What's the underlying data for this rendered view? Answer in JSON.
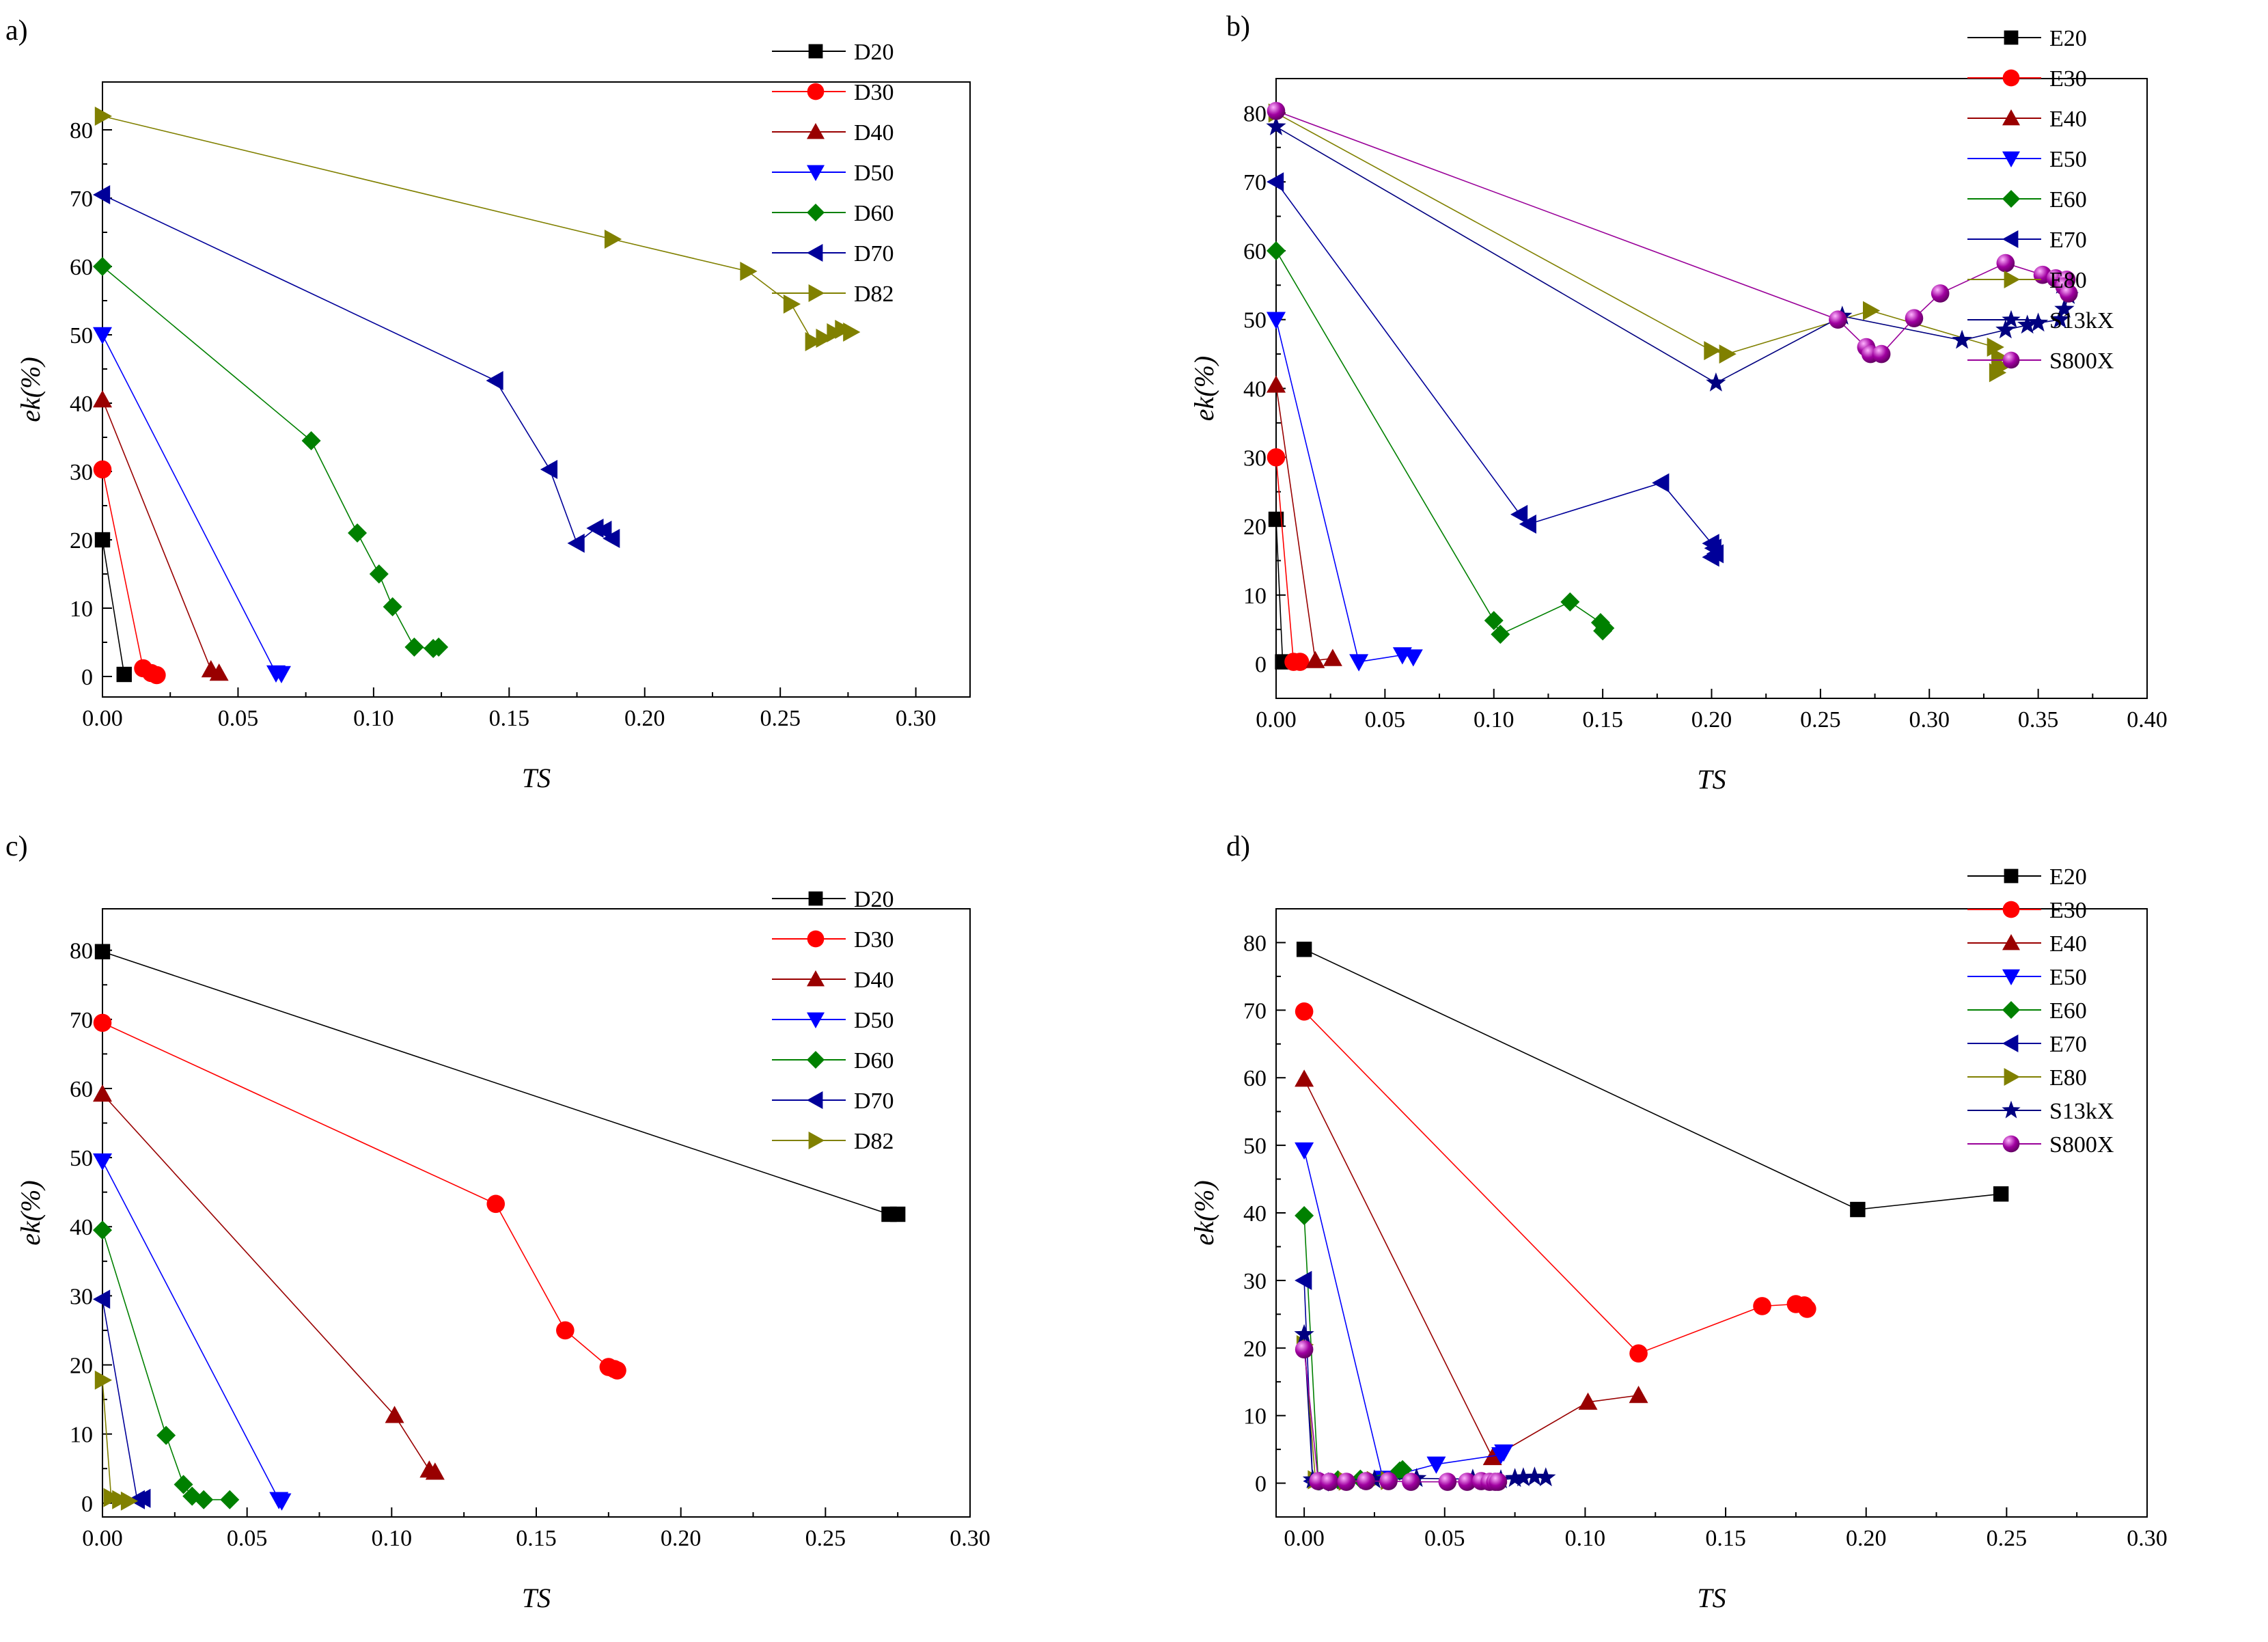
{
  "figure": "Four-panel chart of ek(%) versus TS",
  "chart_data": [
    {
      "type": "line",
      "panel_label": "a)",
      "xlabel": "TS",
      "ylabel": "ek(%)",
      "xlim": [
        0,
        0.32
      ],
      "ylim": [
        -3,
        87
      ],
      "xticks": [
        0.0,
        0.05,
        0.1,
        0.15,
        0.2,
        0.25,
        0.3
      ],
      "xtick_labels": [
        "0.00",
        "0.05",
        "0.10",
        "0.15",
        "0.20",
        "0.25",
        "0.30"
      ],
      "yticks": [
        0,
        10,
        20,
        30,
        40,
        50,
        60,
        70,
        80
      ],
      "ytick_labels": [
        "0",
        "10",
        "20",
        "30",
        "40",
        "50",
        "60",
        "70",
        "80"
      ],
      "legend_position": "top-right",
      "series": [
        {
          "name": "D20",
          "marker": "square",
          "color": "#000000",
          "x": [
            0,
            0.008
          ],
          "y": [
            20,
            0.3
          ]
        },
        {
          "name": "D30",
          "marker": "circle",
          "color": "#ff0000",
          "x": [
            0,
            0.015,
            0.018,
            0.02
          ],
          "y": [
            30.3,
            1.2,
            0.5,
            0.2
          ]
        },
        {
          "name": "D40",
          "marker": "triangle-up",
          "color": "#990000",
          "x": [
            0,
            0.04,
            0.043
          ],
          "y": [
            40.5,
            1,
            0.5
          ]
        },
        {
          "name": "D50",
          "marker": "triangle-down",
          "color": "#0000ff",
          "x": [
            0,
            0.064,
            0.066
          ],
          "y": [
            50,
            0.5,
            0.4
          ]
        },
        {
          "name": "D60",
          "marker": "diamond",
          "color": "#008000",
          "x": [
            0,
            0.077,
            0.094,
            0.102,
            0.107,
            0.115,
            0.122,
            0.124
          ],
          "y": [
            60,
            34.5,
            21,
            15,
            10.2,
            4.3,
            4.1,
            4.3
          ]
        },
        {
          "name": "D70",
          "marker": "triangle-left",
          "color": "#000099",
          "x": [
            0,
            0.145,
            0.165,
            0.175,
            0.182,
            0.185,
            0.188
          ],
          "y": [
            70.5,
            43.3,
            30.3,
            19.5,
            21.7,
            21.4,
            20.2
          ]
        },
        {
          "name": "D82",
          "marker": "triangle-right",
          "color": "#808000",
          "x": [
            0,
            0.188,
            0.238,
            0.254,
            0.262,
            0.266,
            0.27,
            0.273,
            0.276
          ],
          "y": [
            82,
            64,
            59.3,
            54.5,
            49,
            49.5,
            50.3,
            50.8,
            50.4
          ]
        }
      ]
    },
    {
      "type": "line",
      "panel_label": "b)",
      "xlabel": "TS",
      "ylabel": "ek(%)",
      "xlim": [
        0,
        0.4
      ],
      "ylim": [
        -5,
        85
      ],
      "xticks": [
        0.0,
        0.05,
        0.1,
        0.15,
        0.2,
        0.25,
        0.3,
        0.35,
        0.4
      ],
      "xtick_labels": [
        "0.00",
        "0.05",
        "0.10",
        "0.15",
        "0.20",
        "0.25",
        "0.30",
        "0.35",
        "0.40"
      ],
      "yticks": [
        0,
        10,
        20,
        30,
        40,
        50,
        60,
        70,
        80
      ],
      "ytick_labels": [
        "0",
        "10",
        "20",
        "30",
        "40",
        "50",
        "60",
        "70",
        "80"
      ],
      "legend_position": "top-right",
      "series": [
        {
          "name": "E20",
          "marker": "square",
          "color": "#000000",
          "x": [
            0,
            0.003
          ],
          "y": [
            21,
            0.3
          ]
        },
        {
          "name": "E30",
          "marker": "circle",
          "color": "#ff0000",
          "x": [
            0,
            0.008,
            0.011
          ],
          "y": [
            30,
            0.3,
            0.3
          ]
        },
        {
          "name": "E40",
          "marker": "triangle-up",
          "color": "#990000",
          "x": [
            0,
            0.018,
            0.026
          ],
          "y": [
            40.5,
            0.5,
            0.8
          ]
        },
        {
          "name": "E50",
          "marker": "triangle-down",
          "color": "#0000ff",
          "x": [
            0,
            0.038,
            0.058,
            0.063
          ],
          "y": [
            50,
            0.3,
            1.3,
            1
          ]
        },
        {
          "name": "E60",
          "marker": "diamond",
          "color": "#008000",
          "x": [
            0,
            0.1,
            0.103,
            0.135,
            0.149,
            0.151,
            0.15
          ],
          "y": [
            60,
            6.3,
            4.3,
            9,
            6,
            5.2,
            4.8
          ]
        },
        {
          "name": "E70",
          "marker": "triangle-left",
          "color": "#000099",
          "x": [
            0,
            0.112,
            0.116,
            0.177,
            0.2,
            0.201,
            0.202,
            0.2
          ],
          "y": [
            70,
            21.7,
            20.3,
            26.3,
            17.5,
            16.8,
            16,
            15.5
          ]
        },
        {
          "name": "E80",
          "marker": "triangle-right",
          "color": "#808000",
          "x": [
            0,
            0.2,
            0.207,
            0.273,
            0.33,
            0.332,
            0.333,
            0.331
          ],
          "y": [
            80,
            45.5,
            45,
            51.3,
            46,
            44.5,
            43.2,
            42.3
          ]
        },
        {
          "name": "S13kX",
          "marker": "star",
          "color": "#000080",
          "x": [
            0,
            0.202,
            0.26,
            0.315,
            0.335,
            0.345,
            0.35,
            0.36,
            0.362,
            0.364,
            0.361
          ],
          "y": [
            78,
            40.8,
            50.5,
            47,
            48.5,
            49.2,
            49.5,
            50,
            51.5,
            53.5,
            55
          ]
        },
        {
          "name": "S800X",
          "marker": "sphere",
          "color": "#990099",
          "x": [
            0,
            0.258,
            0.271,
            0.273,
            0.278,
            0.293,
            0.305,
            0.335,
            0.352,
            0.358,
            0.363,
            0.362,
            0.364
          ],
          "y": [
            80.3,
            50,
            46,
            45,
            45,
            50.2,
            53.8,
            58.2,
            56.5,
            56,
            55.8,
            54.8,
            53.8
          ]
        }
      ]
    },
    {
      "type": "line",
      "panel_label": "c)",
      "xlabel": "TS",
      "ylabel": "ek(%)",
      "xlim": [
        0,
        0.3
      ],
      "ylim": [
        -2,
        86
      ],
      "xticks": [
        0.0,
        0.05,
        0.1,
        0.15,
        0.2,
        0.25,
        0.3
      ],
      "xtick_labels": [
        "0.00",
        "0.05",
        "0.10",
        "0.15",
        "0.20",
        "0.25",
        "0.30"
      ],
      "yticks": [
        0,
        10,
        20,
        30,
        40,
        50,
        60,
        70,
        80
      ],
      "ytick_labels": [
        "0",
        "10",
        "20",
        "30",
        "40",
        "50",
        "60",
        "70",
        "80"
      ],
      "legend_position": "top-right",
      "series": [
        {
          "name": "D20",
          "marker": "square",
          "color": "#000000",
          "x": [
            0,
            0.272,
            0.275
          ],
          "y": [
            79.8,
            41.8,
            41.8
          ]
        },
        {
          "name": "D30",
          "marker": "circle",
          "color": "#ff0000",
          "x": [
            0,
            0.136,
            0.16,
            0.175,
            0.177,
            0.178
          ],
          "y": [
            69.5,
            43.3,
            25,
            19.7,
            19.4,
            19.2
          ]
        },
        {
          "name": "D40",
          "marker": "triangle-up",
          "color": "#990000",
          "x": [
            0,
            0.101,
            0.113,
            0.115
          ],
          "y": [
            59.2,
            12.7,
            4.8,
            4.5
          ]
        },
        {
          "name": "D50",
          "marker": "triangle-down",
          "color": "#0000ff",
          "x": [
            0,
            0.061,
            0.062
          ],
          "y": [
            49.5,
            0.5,
            0.3
          ]
        },
        {
          "name": "D60",
          "marker": "diamond",
          "color": "#008000",
          "x": [
            0,
            0.022,
            0.028,
            0.031,
            0.035,
            0.044
          ],
          "y": [
            39.5,
            9.8,
            2.7,
            1,
            0.5,
            0.5
          ]
        },
        {
          "name": "D70",
          "marker": "triangle-left",
          "color": "#000099",
          "x": [
            0,
            0.012,
            0.014
          ],
          "y": [
            29.5,
            0.5,
            0.7
          ]
        },
        {
          "name": "D82",
          "marker": "triangle-right",
          "color": "#808000",
          "x": [
            0,
            0.003,
            0.006,
            0.009
          ],
          "y": [
            17.8,
            0.8,
            0.5,
            0.3
          ]
        }
      ]
    },
    {
      "type": "line",
      "panel_label": "d)",
      "xlabel": "TS",
      "ylabel": "ek(%)",
      "xlim": [
        -0.01,
        0.3
      ],
      "ylim": [
        -5,
        85
      ],
      "xticks": [
        0.0,
        0.05,
        0.1,
        0.15,
        0.2,
        0.25,
        0.3
      ],
      "xtick_labels": [
        "0.00",
        "0.05",
        "0.10",
        "0.15",
        "0.20",
        "0.25",
        "0.30"
      ],
      "yticks": [
        0,
        10,
        20,
        30,
        40,
        50,
        60,
        70,
        80
      ],
      "ytick_labels": [
        "0",
        "10",
        "20",
        "30",
        "40",
        "50",
        "60",
        "70",
        "80"
      ],
      "legend_position": "top-right",
      "series": [
        {
          "name": "E20",
          "marker": "square",
          "color": "#000000",
          "x": [
            0,
            0.197,
            0.248
          ],
          "y": [
            79,
            40.5,
            42.8
          ]
        },
        {
          "name": "E30",
          "marker": "circle",
          "color": "#ff0000",
          "x": [
            0,
            0.119,
            0.163,
            0.175,
            0.178,
            0.179
          ],
          "y": [
            69.8,
            19.2,
            26.2,
            26.5,
            26.3,
            25.8
          ]
        },
        {
          "name": "E40",
          "marker": "triangle-up",
          "color": "#990000",
          "x": [
            0,
            0.067,
            0.101,
            0.119
          ],
          "y": [
            59.8,
            3.8,
            12,
            13
          ]
        },
        {
          "name": "E50",
          "marker": "triangle-down",
          "color": "#0000ff",
          "x": [
            0,
            0.028,
            0.047,
            0.07,
            0.071
          ],
          "y": [
            49.3,
            0.7,
            2.8,
            4.2,
            4.6
          ]
        },
        {
          "name": "E60",
          "marker": "diamond",
          "color": "#008000",
          "x": [
            0,
            0.005,
            0.012,
            0.02,
            0.034,
            0.035
          ],
          "y": [
            39.6,
            0.3,
            0.5,
            0.6,
            1.8,
            2
          ]
        },
        {
          "name": "E70",
          "marker": "triangle-left",
          "color": "#000099",
          "x": [
            0,
            0.003,
            0.006
          ],
          "y": [
            30,
            0.3,
            0.2
          ]
        },
        {
          "name": "E80",
          "marker": "triangle-right",
          "color": "#808000",
          "x": [
            0,
            0.004,
            0.015,
            0.025,
            0.03
          ],
          "y": [
            20.5,
            0.5,
            0.3,
            0.4,
            0.4
          ]
        },
        {
          "name": "S13kX",
          "marker": "star",
          "color": "#000080",
          "x": [
            0,
            0.003,
            0.025,
            0.04,
            0.06,
            0.07,
            0.075,
            0.078,
            0.082,
            0.086
          ],
          "y": [
            22,
            0.5,
            0.5,
            0.7,
            0.6,
            0.5,
            0.7,
            0.8,
            0.9,
            0.8
          ]
        },
        {
          "name": "S800X",
          "marker": "sphere",
          "color": "#990099",
          "x": [
            0,
            0.005,
            0.009,
            0.015,
            0.022,
            0.03,
            0.038,
            0.051,
            0.058,
            0.063,
            0.066,
            0.068,
            0.069
          ],
          "y": [
            19.8,
            0.3,
            0.2,
            0.2,
            0.3,
            0.3,
            0.2,
            0.2,
            0.2,
            0.3,
            0.2,
            0.2,
            0.2
          ]
        }
      ]
    }
  ]
}
